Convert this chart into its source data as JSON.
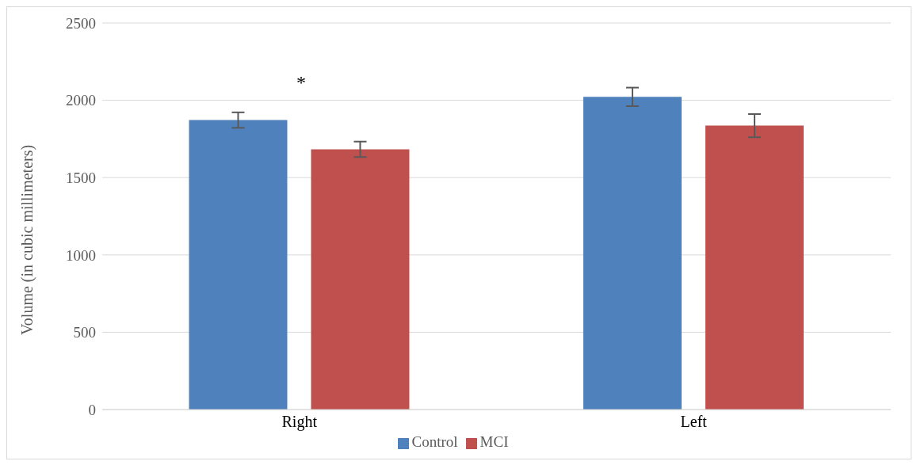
{
  "chart_data": {
    "type": "bar",
    "ylabel": "Volume (in cubic millimeters)",
    "categories": [
      "Right",
      "Left"
    ],
    "series": [
      {
        "name": "Control",
        "color": "#4f81bd",
        "values": [
          1872,
          2022
        ],
        "errors": [
          50,
          60
        ]
      },
      {
        "name": "MCI",
        "color": "#c0504d",
        "values": [
          1683,
          1836
        ],
        "errors": [
          50,
          75
        ]
      }
    ],
    "ylim": [
      0,
      2500
    ],
    "yticks": [
      0,
      500,
      1000,
      1500,
      2000,
      2500
    ],
    "grid": "y",
    "legend": "bottom",
    "annotations": [
      "*"
    ]
  }
}
